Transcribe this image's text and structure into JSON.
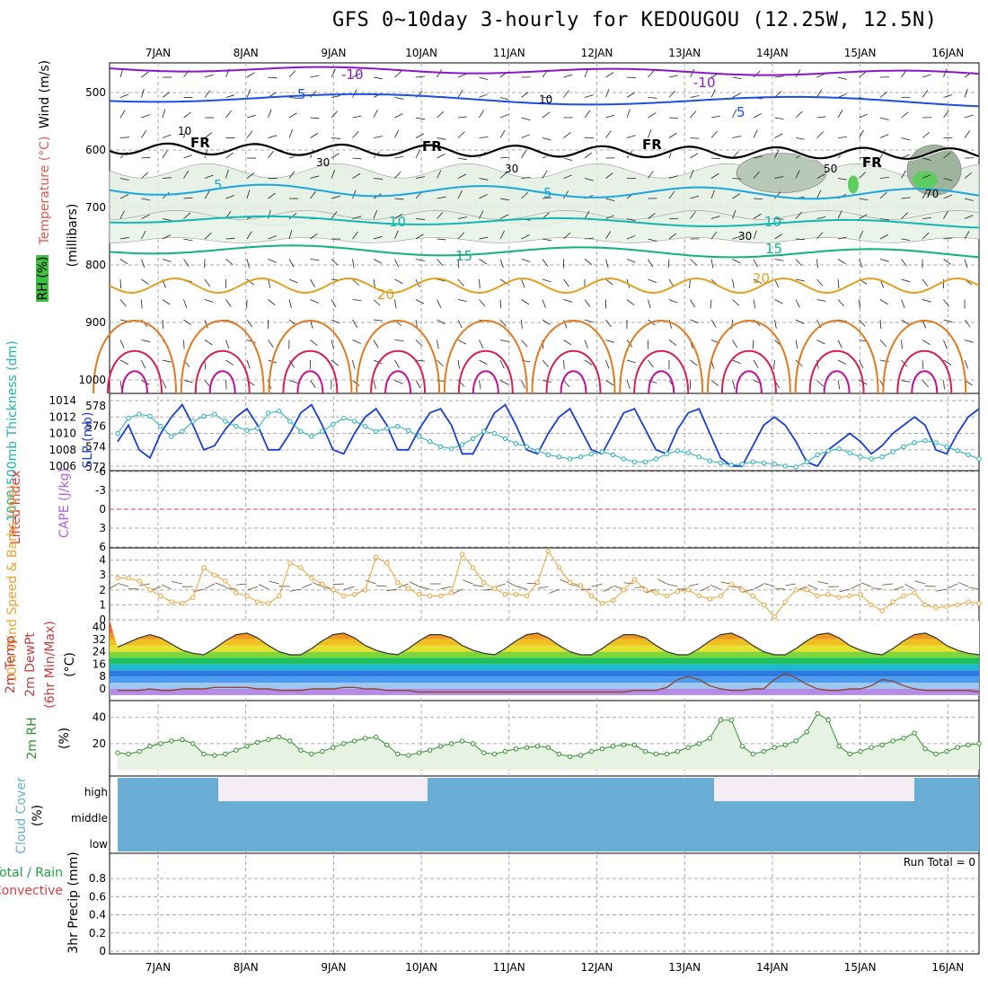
{
  "title": "GFS 0~10day 3-hourly for KEDOUGOU (12.25W, 12.5N)",
  "days": [
    "7JAN",
    "8JAN",
    "9JAN",
    "10JAN",
    "11JAN",
    "12JAN",
    "13JAN",
    "14JAN",
    "15JAN",
    "16JAN"
  ],
  "colors": {
    "wind5": "#1a4fe0",
    "wind10_purple": "#8a16c9",
    "temp_cyan": "#1aa6e0",
    "temp_teal": "#10b8b0",
    "temp_green": "#10b080",
    "temp_gold": "#e0a020",
    "temp_orange": "#e07a20",
    "temp_red": "#d4204a",
    "slp": "#1a3fd0",
    "thickness": "#20b0b8",
    "wind10m": "#f0a030",
    "rh2m": "#309030",
    "cloud": "#6aaed6",
    "grid": "#aaaaaa"
  },
  "chart_data": [
    {
      "panel": "upper_air",
      "type": "heatmap",
      "ylabels": {
        "wind": "Wind (m/s)",
        "temp": "Temperature (°C)",
        "rh": "RH (%)",
        "units": "(millibars)"
      },
      "yticks": [
        "500",
        "600",
        "700",
        "800",
        "900",
        "1000"
      ],
      "isotherm_labels": [
        "-10",
        "-10",
        "5",
        "5",
        "5",
        "5",
        "10",
        "10",
        "15",
        "15",
        "20",
        "20",
        "FR",
        "FR",
        "FR",
        "FR",
        "FR"
      ],
      "rh_labels": [
        "10",
        "10",
        "30",
        "30",
        "50",
        "30",
        "70"
      ]
    },
    {
      "panel": "thickness_slp",
      "type": "line",
      "ylabel_left": "1000-500mb Thickness (dm)",
      "ylabel_right": "SLP (mb)",
      "yticks_left": [
        "578",
        "576",
        "574",
        "572"
      ],
      "yticks_right": [
        "1014",
        "1012",
        "1010",
        "1008",
        "1006"
      ],
      "series": [
        {
          "name": "SLP",
          "values": [
            1009,
            1011,
            1008,
            1007,
            1010,
            1012,
            1013.5,
            1011,
            1008,
            1008.5,
            1010.5,
            1012,
            1013,
            1011,
            1008,
            1008,
            1010,
            1012.5,
            1013.5,
            1011,
            1008,
            1007.5,
            1010,
            1012,
            1013,
            1011,
            1008,
            1008,
            1010.5,
            1012.5,
            1013,
            1011,
            1007.5,
            1007.5,
            1010,
            1012.5,
            1013.5,
            1011,
            1008,
            1007.5,
            1010,
            1012,
            1013,
            1010.5,
            1008,
            1007.5,
            1010,
            1012.5,
            1013,
            1010.5,
            1008,
            1007.5,
            1010.5,
            1012.5,
            1013,
            1010,
            1007,
            1006,
            1006,
            1008.5,
            1011,
            1012,
            1011,
            1009,
            1006.5,
            1006,
            1008,
            1009,
            1010,
            1009,
            1007.5,
            1008.5,
            1010,
            1011,
            1012,
            1011,
            1008,
            1007.5,
            1010,
            1012,
            1013
          ]
        },
        {
          "name": "Thickness",
          "values": [
            575.3,
            576.8,
            577.2,
            577.0,
            576.0,
            575.0,
            575.5,
            576.5,
            577.0,
            577.2,
            576.5,
            576.0,
            575.6,
            575.8,
            577.3,
            577.5,
            576.5,
            575.5,
            575.0,
            575.5,
            576.2,
            576.8,
            576.5,
            576.0,
            575.5,
            575.8,
            576.0,
            575.6,
            575.0,
            574.5,
            574.0,
            573.8,
            574.2,
            574.8,
            575.5,
            575.3,
            574.8,
            574.3,
            574.0,
            573.6,
            573.2,
            573.0,
            572.8,
            573.0,
            573.3,
            573.5,
            573.2,
            572.8,
            572.5,
            572.5,
            572.8,
            573.3,
            573.6,
            573.4,
            573.0,
            572.6,
            572.4,
            572.2,
            572.3,
            572.5,
            572.4,
            572.3,
            572.1,
            572.0,
            572.5,
            573.2,
            573.6,
            573.8,
            573.4,
            573.0,
            572.8,
            573.0,
            573.5,
            574.0,
            574.4,
            574.6,
            574.4,
            574.0,
            573.6,
            573.2,
            572.8
          ]
        }
      ]
    },
    {
      "panel": "cape_li",
      "type": "line",
      "ylabel_left": "Lifted Index",
      "ylabel_right": "CAPE (J/kg)",
      "yticks": [
        "-6",
        "-3",
        "0",
        "3",
        "6"
      ]
    },
    {
      "panel": "wind10m",
      "type": "line",
      "ylabel": "10m Wind Speed & Barbs (m/s)",
      "yticks": [
        "4",
        "3",
        "2",
        "1",
        "0"
      ],
      "series": [
        {
          "name": "10m Wind Speed",
          "values": [
            2.8,
            2.8,
            2.6,
            2.0,
            1.6,
            1.2,
            1.1,
            1.5,
            3.5,
            3.0,
            2.6,
            1.8,
            1.6,
            1.2,
            1.1,
            1.6,
            3.8,
            3.5,
            2.8,
            2.4,
            2.0,
            1.6,
            1.7,
            2.0,
            4.2,
            3.8,
            2.5,
            2.1,
            1.7,
            1.6,
            1.6,
            1.8,
            4.4,
            3.5,
            2.5,
            2.1,
            1.7,
            1.7,
            1.6,
            2.5,
            4.6,
            3.5,
            2.5,
            2.3,
            1.6,
            1.1,
            1.3,
            2.0,
            2.7,
            2.0,
            1.8,
            1.6,
            1.9,
            2.0,
            1.6,
            1.4,
            1.6,
            2.4,
            2.0,
            1.6,
            1.0,
            0.2,
            1.2,
            2.0,
            2.0,
            1.6,
            1.7,
            1.5,
            1.6,
            1.7,
            1.0,
            0.6,
            1.2,
            1.6,
            1.8,
            1.0,
            0.8,
            0.9,
            1.0,
            1.2,
            1.1
          ]
        }
      ]
    },
    {
      "panel": "temp2m",
      "type": "area",
      "ylabel": "2m Temp 2m DewPt (6hr Min/Max) (°C)",
      "yticks": [
        "40",
        "32",
        "24",
        "16",
        "8",
        "0"
      ],
      "series": [
        {
          "name": "2m Temp",
          "values": [
            27,
            30,
            33,
            35,
            33,
            29,
            25,
            23,
            22,
            26,
            31,
            35,
            36,
            33,
            28,
            24,
            22,
            22,
            26,
            31,
            35,
            36,
            33,
            28,
            25,
            23,
            22,
            26,
            31,
            35,
            35,
            33,
            28,
            25,
            23,
            22,
            26,
            31,
            35,
            36,
            33,
            28,
            24,
            22,
            22,
            26,
            31,
            35,
            35,
            33,
            28,
            24,
            22,
            22,
            26,
            31,
            35,
            36,
            33,
            28,
            24,
            22,
            22,
            26,
            31,
            35,
            36,
            33,
            28,
            25,
            23,
            22,
            26,
            31,
            35,
            36,
            33,
            28,
            25,
            23,
            22
          ]
        },
        {
          "name": "2m DewPt",
          "values": [
            -1,
            -1,
            -1,
            0,
            -1,
            -1,
            0,
            0,
            0,
            1,
            1,
            1,
            1,
            0,
            0,
            -1,
            -1,
            -1,
            0,
            0,
            0,
            1,
            1,
            0,
            0,
            -1,
            -1,
            -1,
            -2,
            -2,
            -2,
            -2,
            -2,
            -2,
            -2,
            -2,
            -2,
            -2,
            -2,
            -2,
            -2,
            -2,
            -2,
            -2,
            -2,
            -2,
            -2,
            -2,
            -1,
            -1,
            -1,
            1,
            6,
            8,
            6,
            2,
            0,
            -1,
            -1,
            0,
            0,
            6,
            10,
            7,
            3,
            0,
            -1,
            -1,
            0,
            0,
            2,
            6,
            5,
            2,
            0,
            -1,
            -1,
            -1,
            -1,
            -1,
            -2
          ]
        }
      ]
    },
    {
      "panel": "rh2m",
      "type": "area",
      "ylabel": "2m RH (%)",
      "yticks": [
        "40",
        "20"
      ],
      "series": [
        {
          "name": "2m RH",
          "values": [
            13,
            12,
            14,
            18,
            20,
            22,
            23,
            20,
            12,
            11,
            12,
            15,
            18,
            21,
            23,
            25,
            22,
            15,
            12,
            14,
            17,
            20,
            22,
            24,
            25,
            19,
            12,
            11,
            13,
            15,
            18,
            20,
            22,
            20,
            13,
            12,
            14,
            16,
            17,
            18,
            17,
            12,
            10,
            11,
            14,
            16,
            18,
            19,
            19,
            14,
            12,
            12,
            14,
            17,
            20,
            24,
            38,
            38,
            18,
            12,
            14,
            17,
            19,
            22,
            29,
            43,
            38,
            18,
            12,
            14,
            17,
            19,
            22,
            24,
            28,
            16,
            12,
            14,
            17,
            19,
            20
          ]
        }
      ]
    },
    {
      "panel": "cloud_cover",
      "type": "heatmap",
      "ylabel": "Cloud Cover (%)",
      "levels": [
        "high",
        "middle",
        "low"
      ]
    },
    {
      "panel": "precip",
      "type": "bar",
      "ylabel_left": "Total / Rain Convective",
      "ylabel": "3hr Precip (mm)",
      "yticks": [
        "0.8",
        "0.6",
        "0.4",
        "0.2",
        "0"
      ],
      "run_total": "Run Total = 0"
    }
  ]
}
